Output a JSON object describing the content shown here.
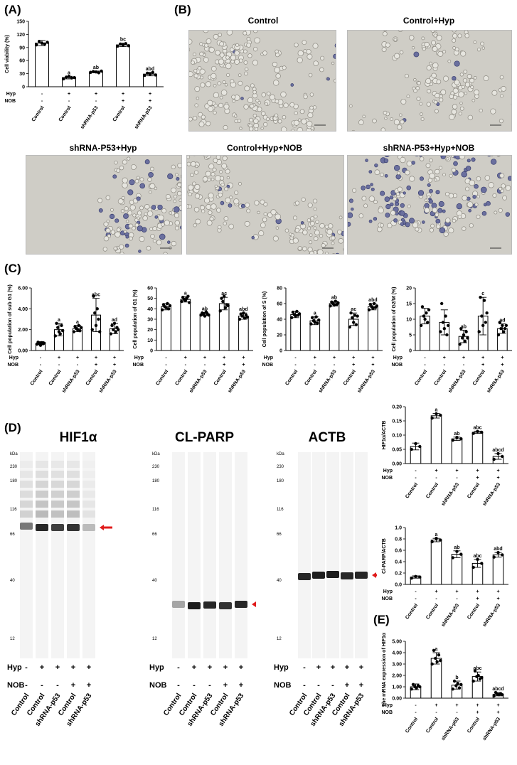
{
  "panels": {
    "A": "(A)",
    "B": "(B)",
    "C": "(C)",
    "D": "(D)",
    "E": "(E)"
  },
  "micro_titles": [
    "Control",
    "Control+Hyp",
    "shRNA-P53+Hyp",
    "Control+Hyp+NOB",
    "shRNA-P53+Hyp+NOB"
  ],
  "groups": [
    "Control",
    "Control",
    "shRNA-p53",
    "Control",
    "shRNA-p53"
  ],
  "hyp_signs": [
    "-",
    "+",
    "+",
    "+",
    "+"
  ],
  "nob_signs": [
    "-",
    "-",
    "-",
    "+",
    "+"
  ],
  "row_labels": {
    "hyp": "Hyp",
    "nob": "NOB"
  },
  "blots": {
    "titles": [
      "HIF1α",
      "CL-PARP",
      "ACTB"
    ],
    "kda": "kDa",
    "ladder": [
      "230",
      "180",
      "116",
      "66",
      "40",
      "12"
    ]
  },
  "chart_data": [
    {
      "id": "A",
      "type": "bar",
      "ylabel": "Cell viability (%)",
      "ylim": [
        0,
        150
      ],
      "yticks": [
        0,
        30,
        60,
        90,
        120,
        150
      ],
      "values": [
        100,
        21,
        34,
        96,
        29
      ],
      "errors": [
        6,
        3,
        2,
        4,
        4
      ],
      "letters": [
        "",
        "a",
        "ab",
        "bc",
        "abd"
      ],
      "points": [
        [
          96,
          104,
          100,
          98,
          102
        ],
        [
          18,
          22,
          24,
          20,
          21
        ],
        [
          33,
          35,
          34,
          32,
          36
        ],
        [
          93,
          98,
          96,
          99,
          94
        ],
        [
          26,
          31,
          29,
          33,
          27
        ]
      ]
    },
    {
      "id": "C1",
      "type": "bar",
      "ylabel": "Cell population of sub G1 (%)",
      "ylim": [
        0,
        6
      ],
      "yticks": [
        0,
        2,
        4,
        6
      ],
      "tick_format": "2dp",
      "values": [
        0.7,
        2.0,
        2.1,
        3.4,
        2.1
      ],
      "errors": [
        0.15,
        0.6,
        0.3,
        1.6,
        0.5
      ],
      "letters": [
        "",
        "a",
        "a",
        "abc",
        "ad"
      ],
      "points": [
        [
          0.6,
          0.8,
          0.7,
          0.5,
          0.75,
          0.65,
          0.7
        ],
        [
          1.4,
          2.6,
          2.2,
          1.8,
          1.6,
          2.4,
          1.9
        ],
        [
          1.8,
          2.3,
          2.1,
          2.0,
          2.4,
          1.9,
          2.2
        ],
        [
          2.0,
          5.2,
          3.6,
          2.4,
          4.0,
          3.0,
          1.8
        ],
        [
          1.6,
          2.4,
          2.0,
          2.6,
          1.8,
          2.2,
          2.0
        ]
      ]
    },
    {
      "id": "C2",
      "type": "bar",
      "ylabel": "Cell population of G1 (%)",
      "ylim": [
        0,
        60
      ],
      "yticks": [
        0,
        10,
        20,
        30,
        40,
        50,
        60
      ],
      "values": [
        42,
        49,
        35,
        45,
        33
      ],
      "errors": [
        3,
        2.5,
        1.5,
        6,
        3
      ],
      "letters": [
        "",
        "a",
        "ab",
        "ac",
        "abd"
      ],
      "points": [
        [
          39,
          44,
          42,
          41,
          45,
          40,
          43
        ],
        [
          47,
          51,
          49,
          48,
          50,
          52,
          46
        ],
        [
          34,
          36,
          35,
          33,
          37,
          35,
          34
        ],
        [
          38,
          50,
          47,
          52,
          41,
          44,
          43
        ],
        [
          30,
          35,
          33,
          36,
          31,
          34,
          32
        ]
      ]
    },
    {
      "id": "C3",
      "type": "bar",
      "ylabel": "Cell population of S (%)",
      "ylim": [
        0,
        80
      ],
      "yticks": [
        0,
        20,
        40,
        60,
        80
      ],
      "values": [
        46,
        38,
        60,
        40,
        56
      ],
      "errors": [
        4,
        5,
        3,
        8,
        4
      ],
      "letters": [
        "",
        "a",
        "ab",
        "ac",
        "abd"
      ],
      "points": [
        [
          42,
          49,
          46,
          44,
          50,
          45,
          47
        ],
        [
          34,
          42,
          38,
          36,
          43,
          35,
          39
        ],
        [
          57,
          62,
          60,
          58,
          63,
          59,
          61
        ],
        [
          30,
          48,
          42,
          36,
          45,
          33,
          44
        ],
        [
          52,
          59,
          56,
          54,
          60,
          55,
          57
        ]
      ]
    },
    {
      "id": "C4",
      "type": "bar",
      "ylabel": "Cell population of G2/M (%)",
      "ylim": [
        0,
        20
      ],
      "yticks": [
        0,
        5,
        10,
        15,
        20
      ],
      "values": [
        11,
        9,
        4.5,
        11,
        7
      ],
      "errors": [
        2.5,
        4,
        2,
        6,
        1.5
      ],
      "letters": [
        "",
        "",
        "ab",
        "c",
        "ad"
      ],
      "points": [
        [
          8,
          14,
          11,
          10,
          12,
          9,
          13
        ],
        [
          6,
          15,
          9,
          7,
          11,
          5,
          8
        ],
        [
          2,
          7,
          4,
          5,
          3,
          6,
          4
        ],
        [
          6,
          17,
          11,
          8,
          16,
          9,
          12
        ],
        [
          5,
          9,
          7,
          8,
          6,
          7,
          8
        ]
      ]
    },
    {
      "id": "D1",
      "type": "bar",
      "ylabel": "HIF1α/ACTB",
      "ylim": [
        0,
        0.2
      ],
      "yticks": [
        0,
        0.05,
        0.1,
        0.15,
        0.2
      ],
      "tick_format": "2dp",
      "values": [
        0.06,
        0.168,
        0.087,
        0.11,
        0.025
      ],
      "errors": [
        0.012,
        0.008,
        0.006,
        0.004,
        0.01
      ],
      "letters": [
        "",
        "a",
        "ab",
        "abc",
        "abcd"
      ],
      "points": [
        [
          0.05,
          0.07,
          0.06
        ],
        [
          0.16,
          0.175,
          0.17
        ],
        [
          0.082,
          0.092,
          0.087
        ],
        [
          0.106,
          0.113,
          0.11
        ],
        [
          0.015,
          0.035,
          0.025
        ]
      ]
    },
    {
      "id": "D2",
      "type": "bar",
      "ylabel": "Cl-PARP/ACTB",
      "ylim": [
        0,
        1.0
      ],
      "yticks": [
        0,
        0.2,
        0.4,
        0.6,
        0.8,
        1.0
      ],
      "tick_format": "1dp",
      "values": [
        0.13,
        0.78,
        0.53,
        0.37,
        0.52
      ],
      "errors": [
        0.02,
        0.03,
        0.06,
        0.07,
        0.04
      ],
      "letters": [
        "",
        "a",
        "ab",
        "abc",
        "abd"
      ],
      "points": [
        [
          0.11,
          0.14,
          0.13
        ],
        [
          0.75,
          0.81,
          0.78
        ],
        [
          0.47,
          0.58,
          0.53
        ],
        [
          0.3,
          0.44,
          0.37
        ],
        [
          0.48,
          0.56,
          0.52
        ]
      ]
    },
    {
      "id": "E",
      "type": "bar",
      "ylabel": "The mRNA expression of HIF1α",
      "ylim": [
        0,
        5
      ],
      "yticks": [
        0,
        1,
        2,
        3,
        4,
        5
      ],
      "tick_format": "2dp",
      "values": [
        1.0,
        3.5,
        1.15,
        1.9,
        0.35
      ],
      "errors": [
        0.25,
        0.5,
        0.35,
        0.4,
        0.15
      ],
      "letters": [
        "",
        "a",
        "b",
        "abc",
        "abcd"
      ],
      "points": [
        [
          0.8,
          1.2,
          1.0,
          0.9,
          1.1,
          1.0
        ],
        [
          3.0,
          4.2,
          3.5,
          3.2,
          3.8,
          3.3
        ],
        [
          0.8,
          1.5,
          1.1,
          1.3,
          0.9,
          1.2
        ],
        [
          1.5,
          2.4,
          1.9,
          2.0,
          1.7,
          1.8
        ],
        [
          0.2,
          0.5,
          0.35,
          0.3,
          0.4,
          0.3
        ]
      ]
    }
  ]
}
